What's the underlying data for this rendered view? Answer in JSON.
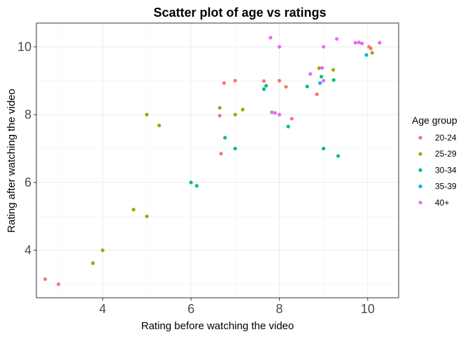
{
  "chart_data": {
    "type": "scatter",
    "title": "Scatter plot of age vs ratings",
    "xlabel": "Rating before watching the video",
    "ylabel": "Rating after watching the video",
    "xlim": [
      2.5,
      10.7
    ],
    "ylim": [
      2.6,
      10.7
    ],
    "xticks": [
      4,
      6,
      8,
      10
    ],
    "yticks": [
      4,
      6,
      8,
      10
    ],
    "grid": true,
    "legend": {
      "title": "Age group",
      "placement": "right"
    },
    "series": [
      {
        "name": "20-24",
        "color": "#F8766D",
        "points": [
          [
            2.7,
            3.15
          ],
          [
            3.0,
            3.0
          ],
          [
            6.65,
            7.97
          ],
          [
            6.68,
            6.85
          ],
          [
            6.75,
            8.93
          ],
          [
            7.0,
            9.0
          ],
          [
            7.65,
            8.99
          ],
          [
            8.0,
            9.0
          ],
          [
            8.15,
            8.82
          ],
          [
            8.28,
            7.88
          ],
          [
            8.85,
            8.6
          ],
          [
            10.03,
            10.0
          ],
          [
            10.07,
            9.95
          ]
        ]
      },
      {
        "name": "25-29",
        "color": "#A3A500",
        "points": [
          [
            3.78,
            3.62
          ],
          [
            4.0,
            4.0
          ],
          [
            4.7,
            5.2
          ],
          [
            5.0,
            5.0
          ],
          [
            5.0,
            8.0
          ],
          [
            5.28,
            7.68
          ],
          [
            6.65,
            8.2
          ],
          [
            7.0,
            8.0
          ],
          [
            7.17,
            8.15
          ],
          [
            8.9,
            9.37
          ],
          [
            9.22,
            9.32
          ],
          [
            10.1,
            9.82
          ]
        ]
      },
      {
        "name": "30-34",
        "color": "#00BF7D",
        "points": [
          [
            6.0,
            6.0
          ],
          [
            6.13,
            5.9
          ],
          [
            6.77,
            7.32
          ],
          [
            7.0,
            7.0
          ],
          [
            7.65,
            8.75
          ],
          [
            7.7,
            8.85
          ],
          [
            8.2,
            7.65
          ],
          [
            8.63,
            8.83
          ],
          [
            8.95,
            9.12
          ],
          [
            9.0,
            7.0
          ],
          [
            9.23,
            9.02
          ],
          [
            9.33,
            6.78
          ]
        ]
      },
      {
        "name": "35-39",
        "color": "#00B0F6",
        "points": [
          [
            8.92,
            8.93
          ],
          [
            9.97,
            9.76
          ]
        ]
      },
      {
        "name": "40+",
        "color": "#E76BF3",
        "points": [
          [
            7.8,
            10.27
          ],
          [
            7.83,
            8.07
          ],
          [
            7.9,
            8.05
          ],
          [
            8.0,
            8.0
          ],
          [
            8.0,
            10.0
          ],
          [
            8.7,
            9.2
          ],
          [
            8.97,
            9.38
          ],
          [
            9.0,
            10.0
          ],
          [
            9.0,
            9.0
          ],
          [
            9.3,
            10.23
          ],
          [
            9.72,
            10.12
          ],
          [
            9.8,
            10.13
          ],
          [
            9.87,
            10.1
          ],
          [
            10.27,
            10.12
          ]
        ]
      }
    ]
  }
}
